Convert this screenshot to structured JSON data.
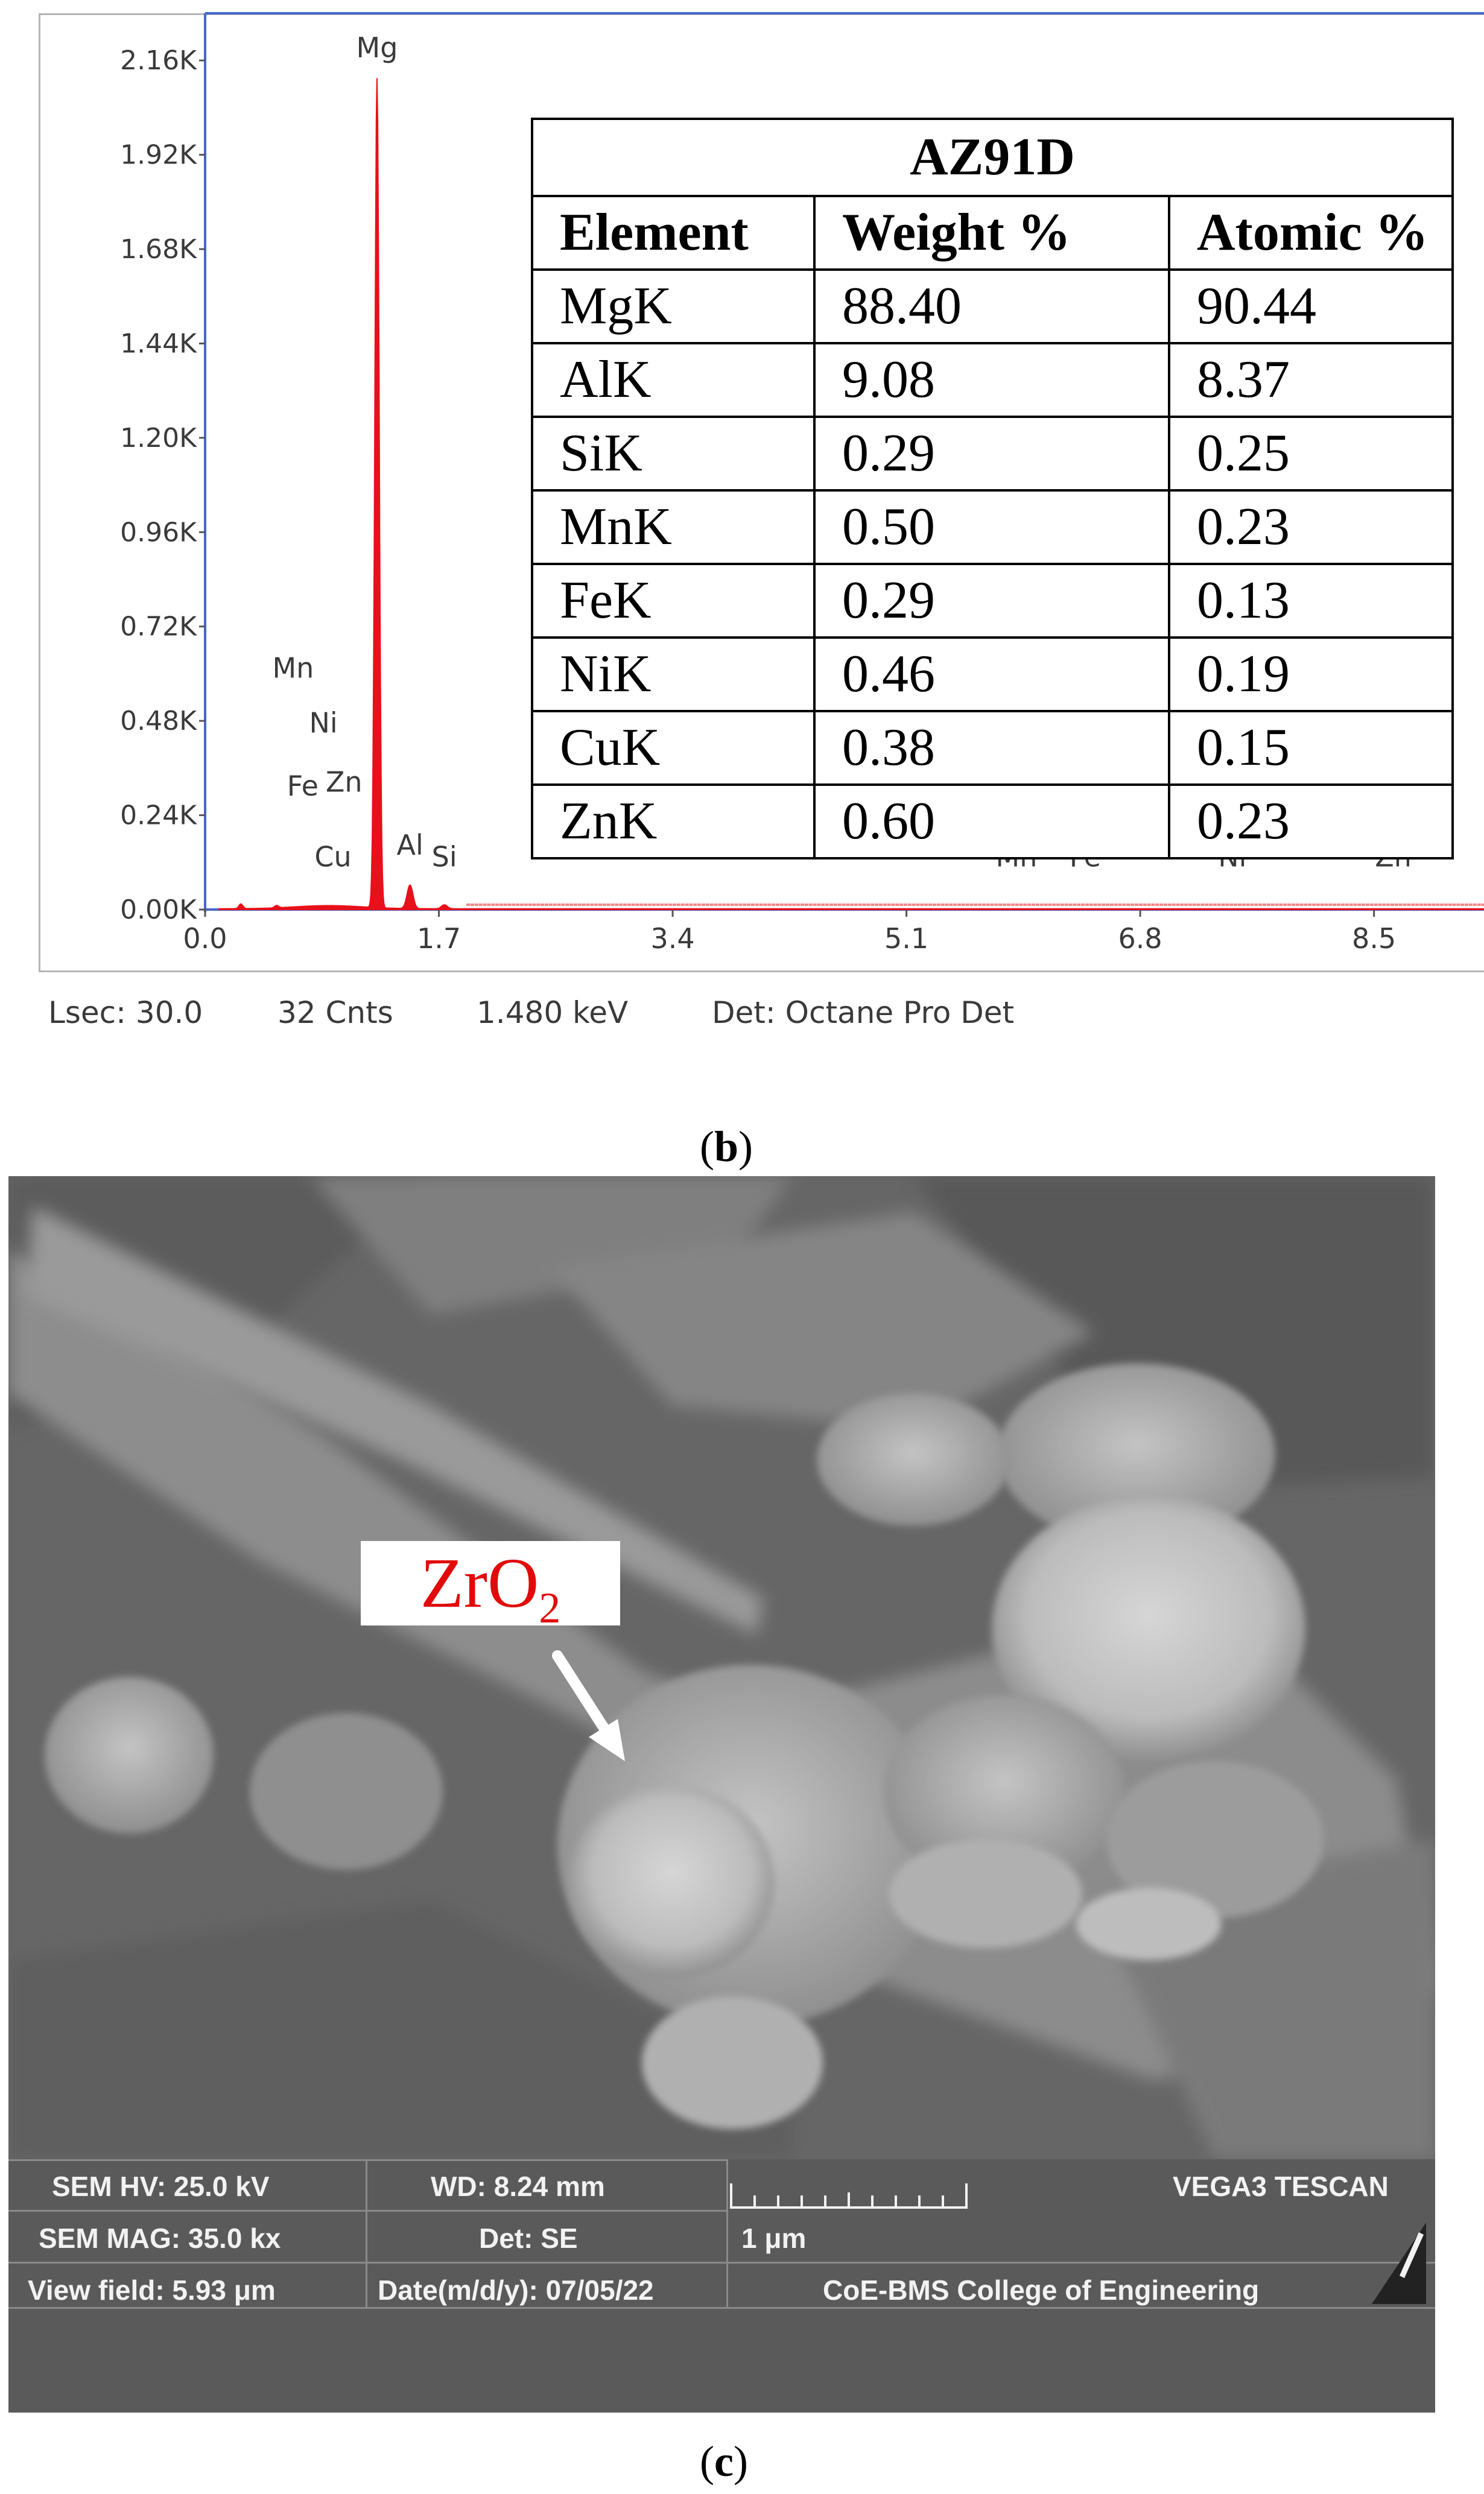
{
  "eds_panel": {
    "chart_data": {
      "type": "line",
      "y_tick_labels": [
        "0.00K",
        "0.24K",
        "0.48K",
        "0.72K",
        "0.96K",
        "1.20K",
        "1.44K",
        "1.68K",
        "1.92K",
        "2.16K"
      ],
      "x_tick_labels": [
        "0.0",
        "1.7",
        "3.4",
        "5.1",
        "6.8",
        "8.5"
      ],
      "xlim": [
        0.0,
        9.3
      ],
      "ylim": [
        0,
        2280
      ],
      "peaks": [
        {
          "label": "Mg",
          "keV": 1.25,
          "counts": 2110
        },
        {
          "label": "Al",
          "keV": 1.49,
          "counts": 60
        },
        {
          "label": "Si",
          "keV": 1.74,
          "counts": 10
        }
      ],
      "element_labels": [
        {
          "label": "Mn",
          "keV": 0.64,
          "counts": 590
        },
        {
          "label": "Ni",
          "keV": 0.86,
          "counts": 450
        },
        {
          "label": "Fe",
          "keV": 0.71,
          "counts": 290
        },
        {
          "label": "Zn",
          "keV": 1.01,
          "counts": 300
        },
        {
          "label": "Cu",
          "keV": 0.93,
          "counts": 110
        },
        {
          "label": "Al",
          "keV": 1.49,
          "counts": 140
        },
        {
          "label": "Si",
          "keV": 1.74,
          "counts": 110
        },
        {
          "label": "Mn",
          "keV": 5.9,
          "counts": 110
        },
        {
          "label": "Fe",
          "keV": 6.4,
          "counts": 110
        },
        {
          "label": "Ni",
          "keV": 7.47,
          "counts": 110
        },
        {
          "label": "Zn",
          "keV": 8.64,
          "counts": 110
        }
      ],
      "colors": {
        "spectrum": "#e8101a",
        "axis": "#4466cc"
      }
    },
    "table": {
      "title": "AZ91D",
      "headers": [
        "Element",
        "Weight %",
        "Atomic %"
      ],
      "rows": [
        {
          "element": "MgK",
          "weight": "88.40",
          "atomic": "90.44"
        },
        {
          "element": "AlK",
          "weight": "9.08",
          "atomic": "8.37"
        },
        {
          "element": "SiK",
          "weight": "0.29",
          "atomic": "0.25"
        },
        {
          "element": "MnK",
          "weight": "0.50",
          "atomic": "0.23"
        },
        {
          "element": "FeK",
          "weight": "0.29",
          "atomic": "0.13"
        },
        {
          "element": "NiK",
          "weight": "0.46",
          "atomic": "0.19"
        },
        {
          "element": "CuK",
          "weight": "0.38",
          "atomic": "0.15"
        },
        {
          "element": "ZnK",
          "weight": "0.60",
          "atomic": "0.23"
        }
      ]
    },
    "status": {
      "lsec": "Lsec: 30.0",
      "cnts": "32 Cnts",
      "kev": "1.480 keV",
      "det": "Det: Octane Pro Det"
    },
    "panel_label": "b"
  },
  "sem_panel": {
    "annotation": {
      "base": "ZrO",
      "subscript": "2",
      "color": "#e10a0a"
    },
    "info": {
      "hv": "SEM HV: 25.0 kV",
      "wd": "WD: 8.24 mm",
      "instrument": "VEGA3 TESCAN",
      "mag": "SEM MAG: 35.0 kx",
      "det": "Det: SE",
      "scale": "1 μm",
      "view_field": "View field: 5.93 μm",
      "date": "Date(m/d/y): 07/05/22",
      "institution": "CoE-BMS College of Engineering"
    },
    "panel_label": "c"
  }
}
